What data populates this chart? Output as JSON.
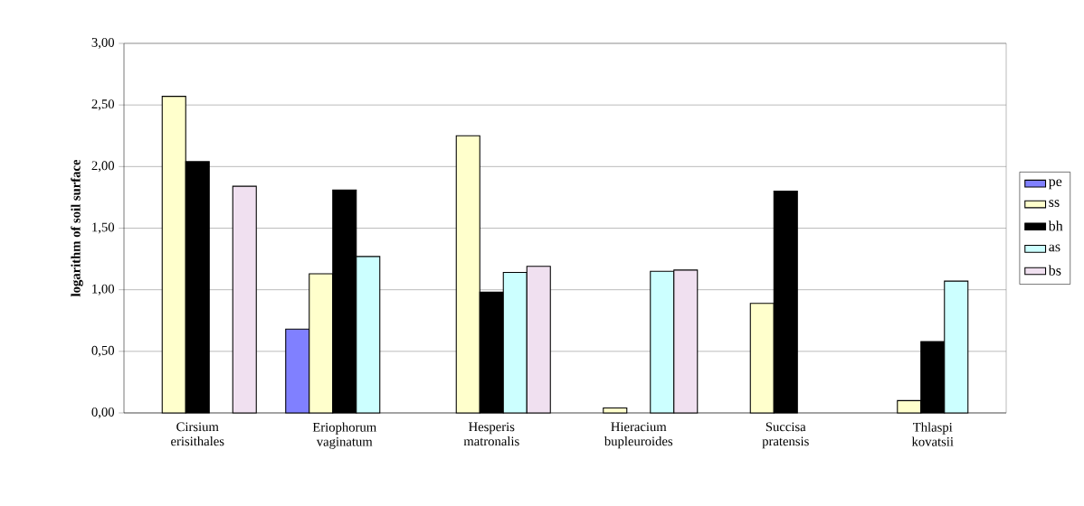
{
  "chart_data": {
    "type": "bar",
    "ylabel": "logarithm of soil surface",
    "categories": [
      "Cirsium erisithales",
      "Eriophorum vaginatum",
      "Hesperis matronalis",
      "Hieracium bupleuroides",
      "Succisa pratensis",
      "Thlaspi kovatsii"
    ],
    "series": [
      {
        "name": "pe",
        "color": "#8080ff",
        "values": [
          null,
          0.68,
          null,
          null,
          null,
          null
        ]
      },
      {
        "name": "ss",
        "color": "#ffffcc",
        "values": [
          2.57,
          1.13,
          2.25,
          0.04,
          0.89,
          0.1
        ]
      },
      {
        "name": "bh",
        "color": "#000000",
        "values": [
          2.04,
          1.81,
          0.98,
          null,
          1.8,
          0.58
        ]
      },
      {
        "name": "as",
        "color": "#ccffff",
        "values": [
          null,
          1.27,
          1.14,
          1.15,
          null,
          1.07
        ]
      },
      {
        "name": "bs",
        "color": "#f0e0f0",
        "values": [
          1.84,
          null,
          1.19,
          1.16,
          null,
          null
        ]
      }
    ],
    "ylim": [
      0,
      3
    ],
    "yticks": [
      {
        "value": 0,
        "label": "0,00"
      },
      {
        "value": 0.5,
        "label": "0,50"
      },
      {
        "value": 1,
        "label": "1,00"
      },
      {
        "value": 1.5,
        "label": "1,50"
      },
      {
        "value": 2,
        "label": "2,00"
      },
      {
        "value": 2.5,
        "label": "2,50"
      },
      {
        "value": 3,
        "label": "3,00"
      }
    ],
    "grid": "y",
    "legend": "right"
  }
}
